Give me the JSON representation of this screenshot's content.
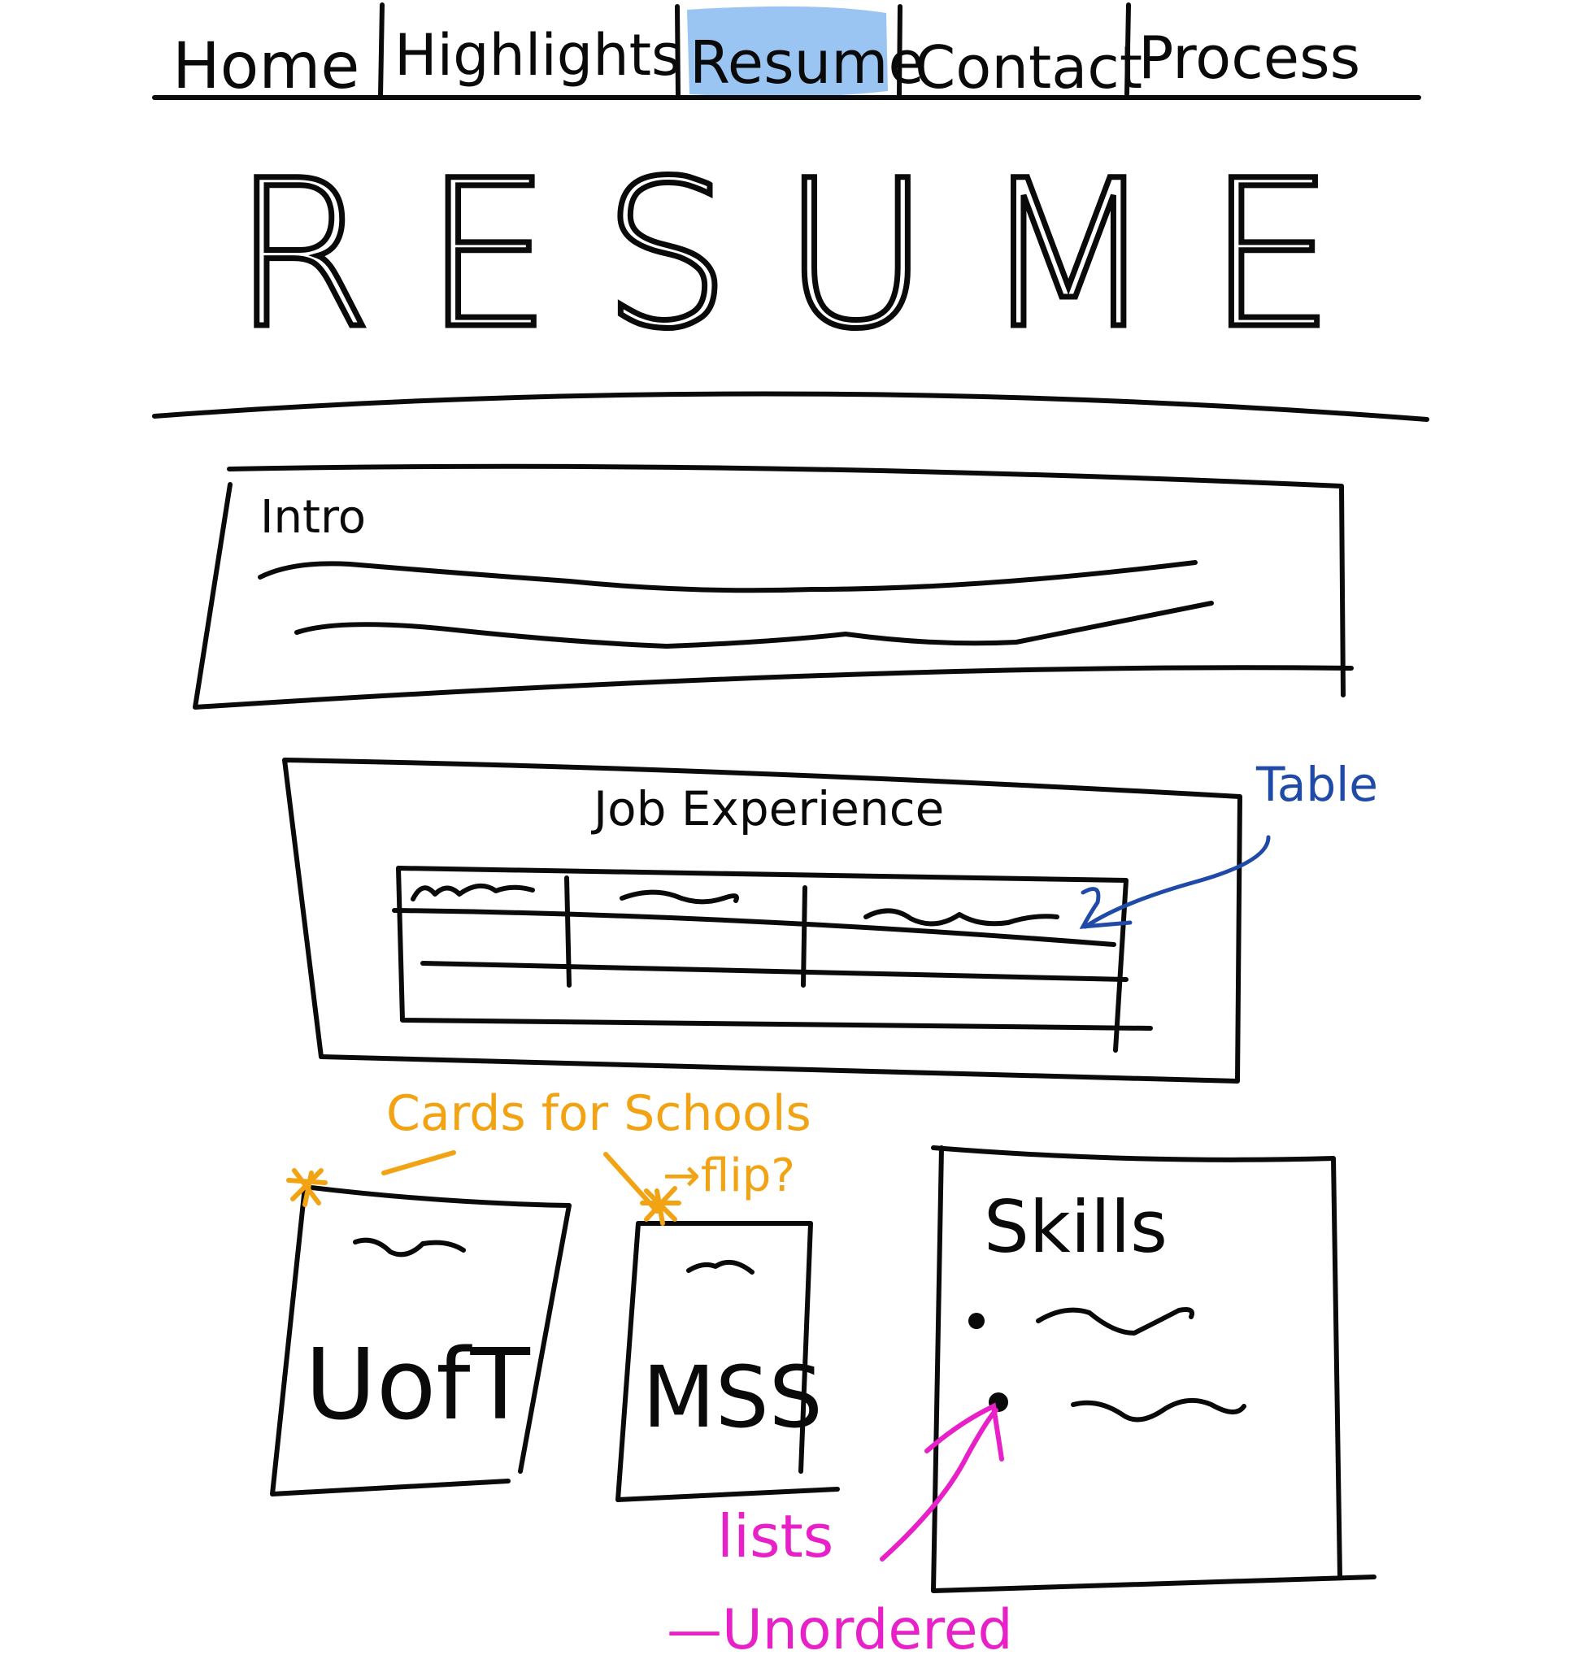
{
  "nav": {
    "items": [
      "Home",
      "Highlights",
      "Resume",
      "Contact",
      "Process"
    ],
    "active_index": 2,
    "highlight_color": "#8fbff2"
  },
  "title": "RESUME",
  "intro": {
    "heading": "Intro"
  },
  "job_experience": {
    "heading": "Job Experience"
  },
  "cards": [
    {
      "label": "UofT"
    },
    {
      "label": "MSS"
    }
  ],
  "skills": {
    "heading": "Skills"
  },
  "annotations": {
    "table_note": "Table",
    "cards_note": "Cards for Schools",
    "flip_note": "→flip?",
    "lists_note": "lists",
    "unordered_note": "—Unordered"
  },
  "colors": {
    "ink": "#0a0a0a",
    "orange_note": "#f2a313",
    "blue_note": "#1f4aa8",
    "pink_note": "#e820c8"
  }
}
